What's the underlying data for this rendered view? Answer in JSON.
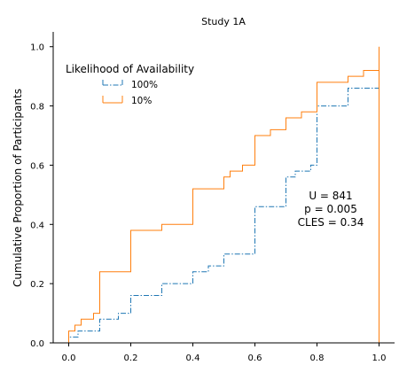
{
  "chart_data": {
    "type": "line",
    "step": true,
    "title": "Study 1A",
    "xlabel": "",
    "ylabel": "Cumulative Proportion of Participants",
    "xlim": [
      -0.05,
      1.05
    ],
    "ylim": [
      0,
      1.05
    ],
    "x_ticks": [
      0.0,
      0.2,
      0.4,
      0.6,
      0.8,
      1.0
    ],
    "x_tick_labels": [
      "0.0",
      "0.2",
      "0.4",
      "0.6",
      "0.8",
      "1.0"
    ],
    "y_ticks": [
      0.0,
      0.2,
      0.4,
      0.6,
      0.8,
      1.0
    ],
    "y_tick_labels": [
      "0.0",
      "0.2",
      "0.4",
      "0.6",
      "0.8",
      "1.0"
    ],
    "grid": false,
    "legend": {
      "title": "Likelihood of Availability",
      "placement": "upper-left"
    },
    "series": [
      {
        "name": "100%",
        "color": "#1f77b4",
        "dash": "dashdot",
        "x": [
          0.0,
          0.03,
          0.1,
          0.16,
          0.2,
          0.3,
          0.4,
          0.45,
          0.5,
          0.6,
          0.7,
          0.73,
          0.78,
          0.8,
          0.9,
          1.0
        ],
        "y": [
          0.02,
          0.04,
          0.08,
          0.1,
          0.16,
          0.2,
          0.24,
          0.26,
          0.3,
          0.46,
          0.56,
          0.58,
          0.6,
          0.8,
          0.86,
          0.92
        ]
      },
      {
        "name": "10%",
        "color": "#ff7f0e",
        "dash": "solid",
        "x": [
          0.0,
          0.02,
          0.04,
          0.08,
          0.1,
          0.2,
          0.3,
          0.4,
          0.5,
          0.52,
          0.56,
          0.6,
          0.65,
          0.7,
          0.75,
          0.8,
          0.9,
          0.95,
          1.0
        ],
        "y": [
          0.04,
          0.06,
          0.08,
          0.1,
          0.24,
          0.38,
          0.4,
          0.52,
          0.56,
          0.58,
          0.6,
          0.7,
          0.72,
          0.76,
          0.78,
          0.88,
          0.9,
          0.92,
          1.0
        ]
      }
    ],
    "annotation": [
      "U = 841",
      "p = 0.005",
      "CLES = 0.34"
    ]
  }
}
